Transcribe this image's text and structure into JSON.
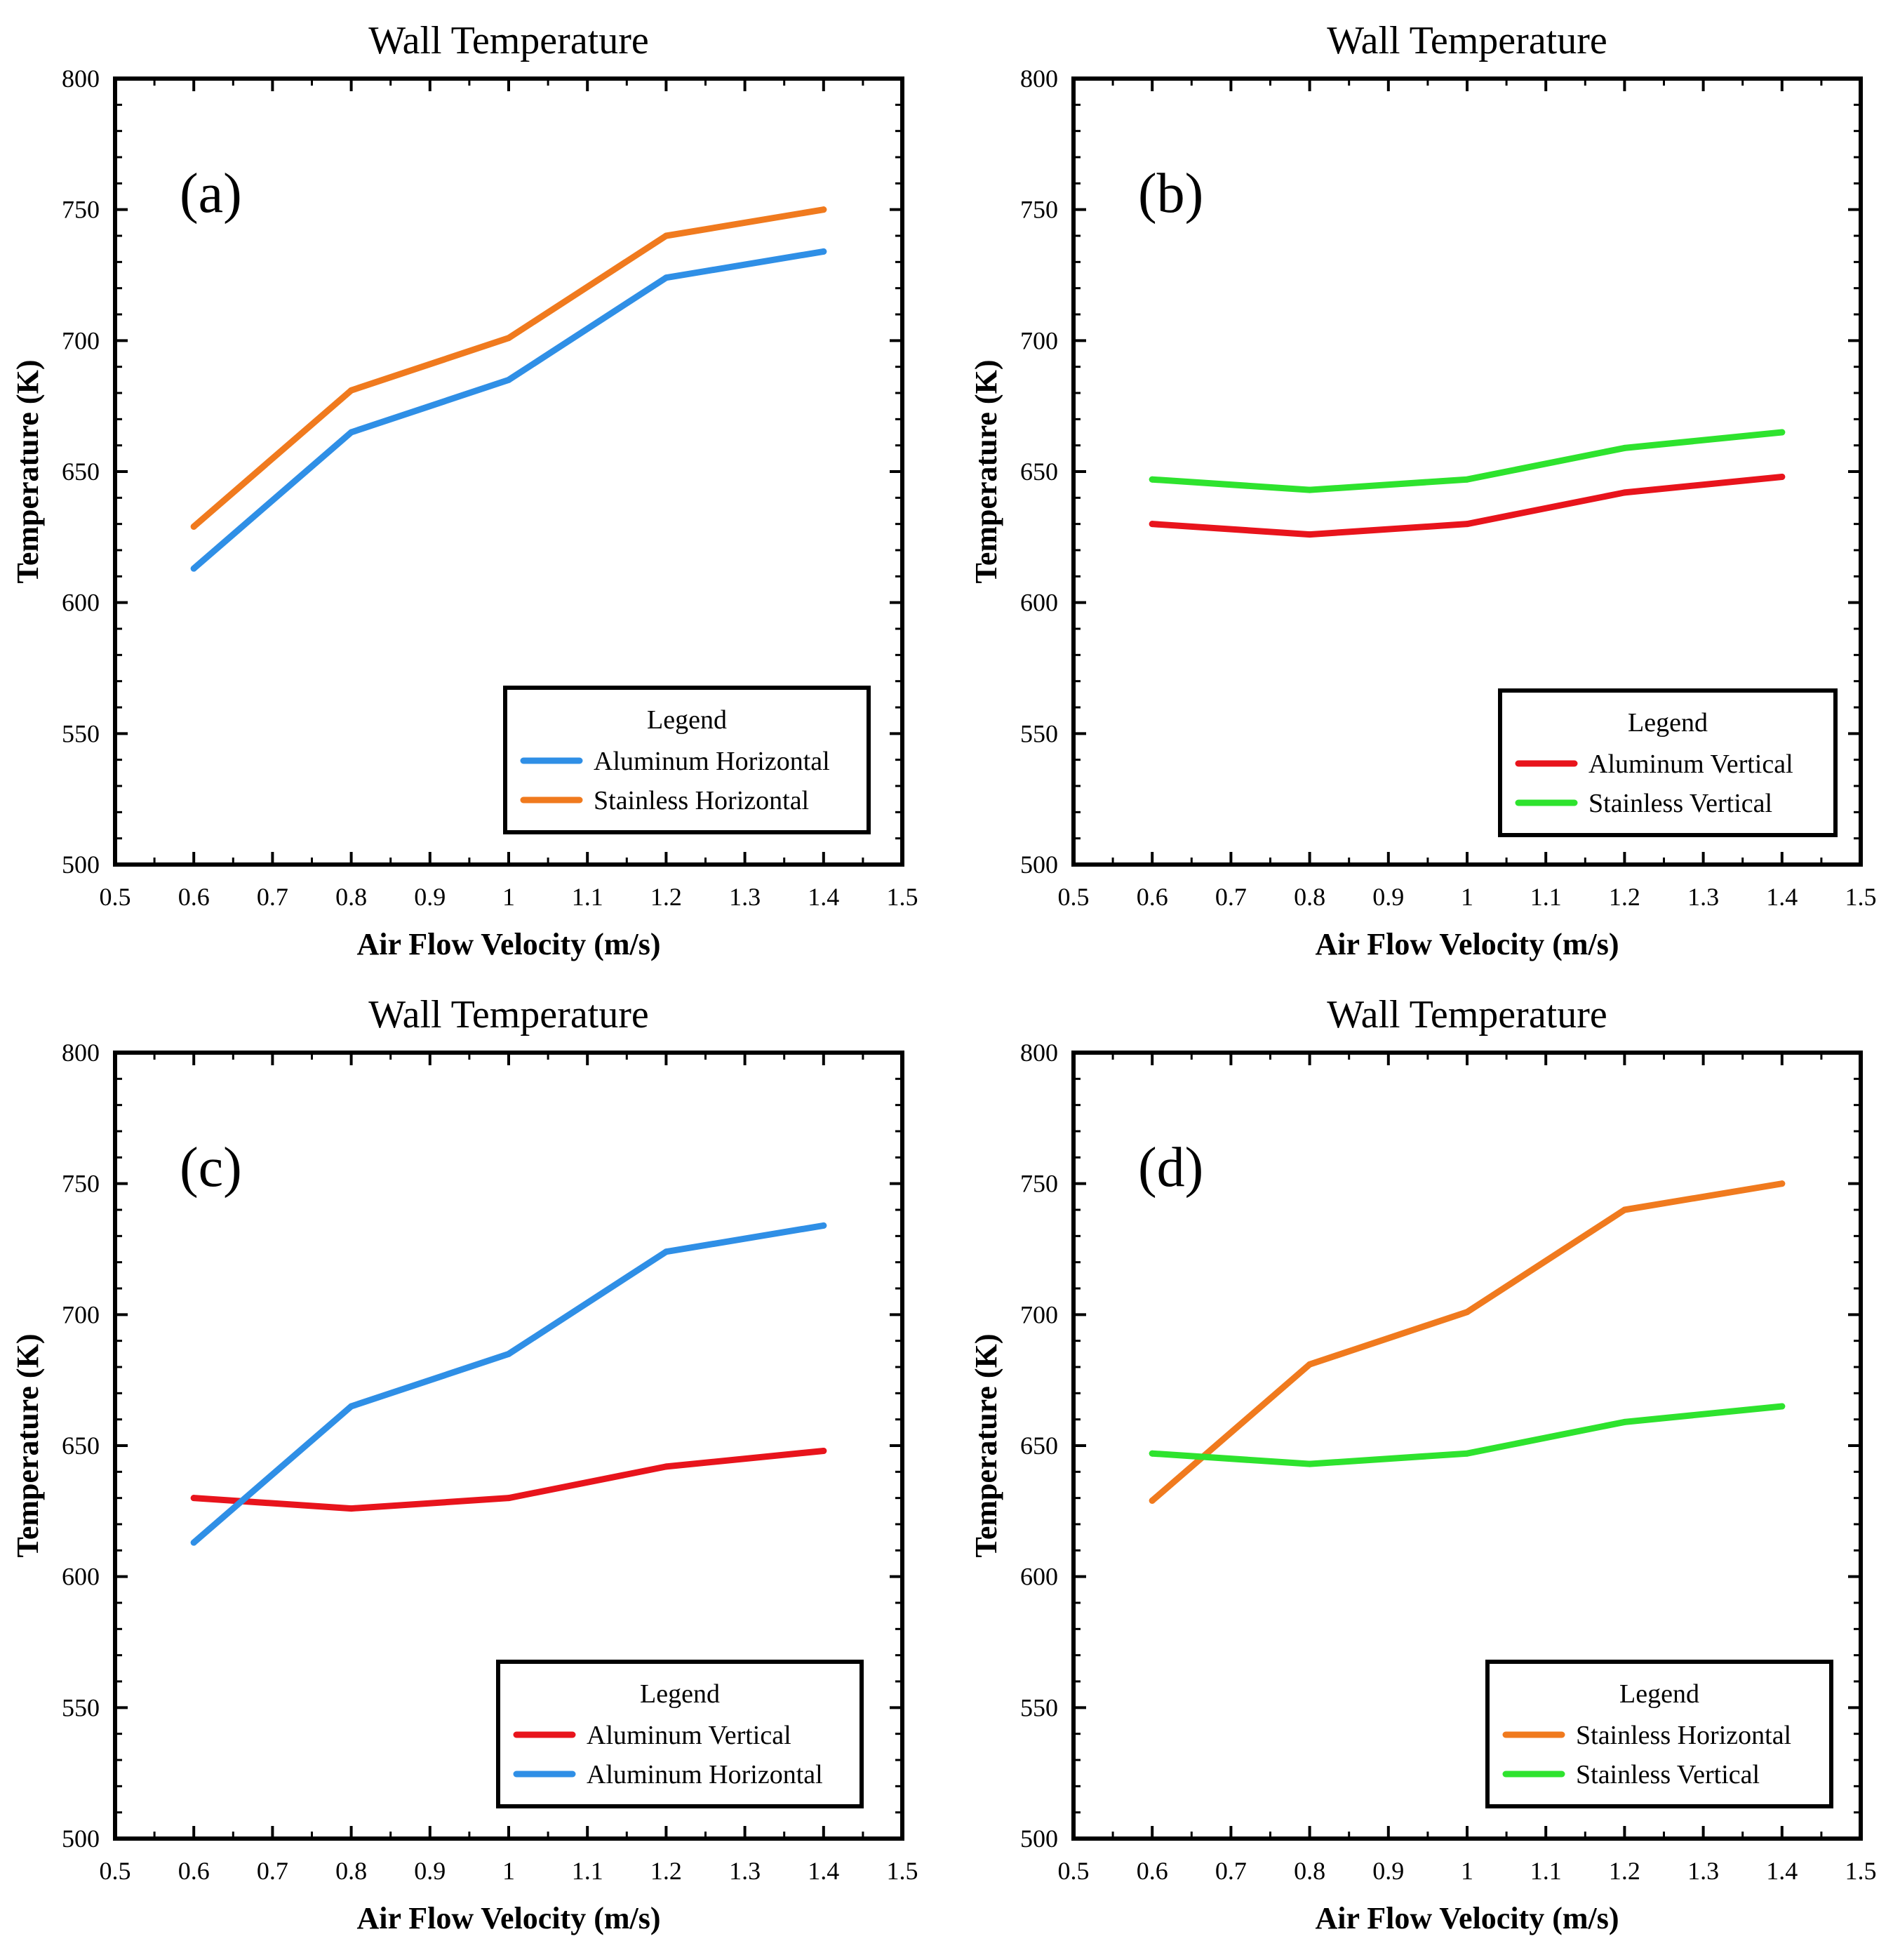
{
  "chart_data": [
    {
      "type": "line",
      "panel_label": "(a)",
      "title": "Wall Temperature",
      "xlabel": "Air Flow Velocity (m/s)",
      "ylabel": "Temperature (K)",
      "xlim": [
        0.5,
        1.5
      ],
      "ylim": [
        500,
        800
      ],
      "xticks": [
        "0.5",
        "0.6",
        "0.7",
        "0.8",
        "0.9",
        "1",
        "1.1",
        "1.2",
        "1.3",
        "1.4",
        "1.5"
      ],
      "yticks": [
        "500",
        "550",
        "600",
        "650",
        "700",
        "750",
        "800"
      ],
      "legend_title": "Legend",
      "legend_position": "bottom-right",
      "x": [
        0.6,
        0.8,
        1.0,
        1.2,
        1.4
      ],
      "series": [
        {
          "name": "Aluminum Horizontal",
          "color": "#2f8fe6",
          "values": [
            613,
            665,
            685,
            724,
            734
          ]
        },
        {
          "name": "Stainless Horizontal",
          "color": "#f07a1e",
          "values": [
            629,
            681,
            701,
            740,
            750
          ]
        }
      ]
    },
    {
      "type": "line",
      "panel_label": "(b)",
      "title": "Wall Temperature",
      "xlabel": "Air Flow Velocity (m/s)",
      "ylabel": "Temperature (K)",
      "xlim": [
        0.5,
        1.5
      ],
      "ylim": [
        500,
        800
      ],
      "xticks": [
        "0.5",
        "0.6",
        "0.7",
        "0.8",
        "0.9",
        "1",
        "1.1",
        "1.2",
        "1.3",
        "1.4",
        "1.5"
      ],
      "yticks": [
        "500",
        "550",
        "600",
        "650",
        "700",
        "750",
        "800"
      ],
      "legend_title": "Legend",
      "legend_position": "bottom-right",
      "x": [
        0.6,
        0.8,
        1.0,
        1.2,
        1.4
      ],
      "series": [
        {
          "name": "Aluminum Vertical",
          "color": "#e8141c",
          "values": [
            630,
            626,
            630,
            642,
            648
          ]
        },
        {
          "name": "Stainless Vertical",
          "color": "#2ee32e",
          "values": [
            647,
            643,
            647,
            659,
            665
          ]
        }
      ]
    },
    {
      "type": "line",
      "panel_label": "(c)",
      "title": "Wall Temperature",
      "xlabel": "Air Flow Velocity (m/s)",
      "ylabel": "Temperature (K)",
      "xlim": [
        0.5,
        1.5
      ],
      "ylim": [
        500,
        800
      ],
      "xticks": [
        "0.5",
        "0.6",
        "0.7",
        "0.8",
        "0.9",
        "1",
        "1.1",
        "1.2",
        "1.3",
        "1.4",
        "1.5"
      ],
      "yticks": [
        "500",
        "550",
        "600",
        "650",
        "700",
        "750",
        "800"
      ],
      "legend_title": "Legend",
      "legend_position": "bottom-right",
      "x": [
        0.6,
        0.8,
        1.0,
        1.2,
        1.4
      ],
      "series": [
        {
          "name": "Aluminum Vertical",
          "color": "#e8141c",
          "values": [
            630,
            626,
            630,
            642,
            648
          ]
        },
        {
          "name": "Aluminum Horizontal",
          "color": "#2f8fe6",
          "values": [
            613,
            665,
            685,
            724,
            734
          ]
        }
      ]
    },
    {
      "type": "line",
      "panel_label": "(d)",
      "title": "Wall Temperature",
      "xlabel": "Air Flow Velocity (m/s)",
      "ylabel": "Temperature (K)",
      "xlim": [
        0.5,
        1.5
      ],
      "ylim": [
        500,
        800
      ],
      "xticks": [
        "0.5",
        "0.6",
        "0.7",
        "0.8",
        "0.9",
        "1",
        "1.1",
        "1.2",
        "1.3",
        "1.4",
        "1.5"
      ],
      "yticks": [
        "500",
        "550",
        "600",
        "650",
        "700",
        "750",
        "800"
      ],
      "legend_title": "Legend",
      "legend_position": "bottom-right",
      "x": [
        0.6,
        0.8,
        1.0,
        1.2,
        1.4
      ],
      "series": [
        {
          "name": "Stainless Horizontal",
          "color": "#f07a1e",
          "values": [
            629,
            681,
            701,
            740,
            750
          ]
        },
        {
          "name": "Stainless Vertical",
          "color": "#2ee32e",
          "values": [
            647,
            643,
            647,
            659,
            665
          ]
        }
      ]
    }
  ]
}
